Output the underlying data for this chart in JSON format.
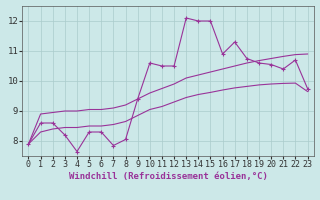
{
  "background_color": "#cce8e8",
  "line_color": "#993399",
  "grid_color": "#aacccc",
  "xlabel": "Windchill (Refroidissement éolien,°C)",
  "xlim": [
    -0.5,
    23.5
  ],
  "ylim": [
    7.5,
    12.5
  ],
  "yticks": [
    8,
    9,
    10,
    11,
    12
  ],
  "xticks": [
    0,
    1,
    2,
    3,
    4,
    5,
    6,
    7,
    8,
    9,
    10,
    11,
    12,
    13,
    14,
    15,
    16,
    17,
    18,
    19,
    20,
    21,
    22,
    23
  ],
  "data_x": [
    0,
    1,
    2,
    3,
    4,
    5,
    6,
    7,
    8,
    9,
    10,
    11,
    12,
    13,
    14,
    15,
    16,
    17,
    18,
    19,
    20,
    21,
    22,
    23
  ],
  "data_y_main": [
    7.9,
    8.6,
    8.6,
    8.2,
    7.65,
    8.3,
    8.3,
    7.85,
    8.05,
    9.4,
    10.6,
    10.5,
    10.5,
    12.1,
    12.0,
    12.0,
    10.9,
    11.3,
    10.75,
    10.6,
    10.55,
    10.4,
    10.7,
    9.75
  ],
  "data_y_upper": [
    7.9,
    8.9,
    8.95,
    9.0,
    9.0,
    9.05,
    9.05,
    9.1,
    9.2,
    9.4,
    9.6,
    9.75,
    9.9,
    10.1,
    10.2,
    10.3,
    10.4,
    10.5,
    10.6,
    10.68,
    10.75,
    10.82,
    10.88,
    10.9
  ],
  "data_y_lower": [
    7.9,
    8.3,
    8.4,
    8.45,
    8.45,
    8.5,
    8.5,
    8.55,
    8.65,
    8.85,
    9.05,
    9.15,
    9.3,
    9.45,
    9.55,
    9.62,
    9.7,
    9.77,
    9.82,
    9.87,
    9.9,
    9.92,
    9.93,
    9.65
  ],
  "font_size_label": 6.5,
  "font_size_tick": 6
}
